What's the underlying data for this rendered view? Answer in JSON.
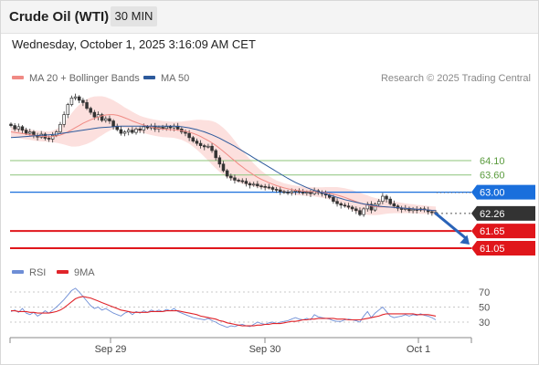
{
  "header": {
    "title": "Crude Oil (WTI)",
    "timeframe": "30 MIN"
  },
  "timestamp": "Wednesday, October 1, 2025 3:16:09 AM CET",
  "legend": {
    "ma20": {
      "label": "MA 20 + Bollinger Bands",
      "color": "#f08a84"
    },
    "ma50": {
      "label": "MA 50",
      "color": "#2d5a9c"
    },
    "credit": "Research © 2025 Trading Central"
  },
  "rsi_legend": {
    "rsi": {
      "label": "RSI",
      "color": "#6e8ed6"
    },
    "ma9": {
      "label": "9MA",
      "color": "#e0242a"
    }
  },
  "chart_data": [
    {
      "type": "candlestick",
      "title": "Crude Oil (WTI)",
      "timeframe": "30 MIN",
      "x_tick_labels": [
        "Sep 29",
        "Sep 30",
        "Oct 1"
      ],
      "ylim": [
        60.7,
        66.6
      ],
      "price_levels": [
        {
          "value": 64.1,
          "label": "64.10",
          "role": "resistance",
          "color": "#8cc47a"
        },
        {
          "value": 63.6,
          "label": "63.60",
          "role": "resistance",
          "color": "#8cc47a"
        },
        {
          "value": 63.0,
          "label": "63.00",
          "role": "pivot",
          "color": "#1a6fdc"
        },
        {
          "value": 62.26,
          "label": "62.26",
          "role": "last price",
          "color": "#333333"
        },
        {
          "value": 61.65,
          "label": "61.65",
          "role": "support",
          "color": "#e0161b"
        },
        {
          "value": 61.05,
          "label": "61.05",
          "role": "support",
          "color": "#e0161b"
        }
      ],
      "close": [
        65.32,
        65.2,
        65.28,
        65.16,
        65.05,
        65.1,
        64.98,
        64.92,
        65.02,
        64.88,
        64.85,
        64.98,
        65.1,
        65.36,
        65.7,
        66.05,
        66.28,
        66.32,
        66.2,
        66.12,
        65.92,
        65.78,
        65.62,
        65.7,
        65.5,
        65.56,
        65.48,
        65.3,
        65.18,
        65.05,
        65.1,
        65.16,
        65.08,
        65.2,
        65.16,
        65.28,
        65.24,
        65.3,
        65.2,
        65.26,
        65.22,
        65.28,
        65.24,
        65.3,
        65.2,
        65.1,
        65.05,
        64.9,
        64.78,
        64.7,
        64.62,
        64.58,
        64.6,
        64.45,
        64.2,
        63.98,
        63.75,
        63.56,
        63.5,
        63.42,
        63.4,
        63.38,
        63.3,
        63.25,
        63.28,
        63.22,
        63.2,
        63.18,
        63.16,
        63.1,
        63.08,
        63.02,
        63.0,
        62.98,
        63.02,
        63.05,
        63.0,
        62.98,
        63.0,
        62.95,
        63.05,
        62.98,
        62.95,
        62.9,
        62.82,
        62.68,
        62.6,
        62.55,
        62.52,
        62.48,
        62.42,
        62.36,
        62.22,
        62.42,
        62.58,
        62.38,
        62.58,
        62.68,
        62.86,
        62.76,
        62.6,
        62.52,
        62.44,
        62.4,
        62.44,
        62.36,
        62.4,
        62.38,
        62.42,
        62.38,
        62.32,
        62.3,
        62.26
      ],
      "ma20": [
        65.1,
        65.08,
        65.06,
        65.04,
        65.02,
        65.0,
        64.98,
        64.96,
        64.95,
        64.94,
        64.93,
        64.94,
        64.96,
        64.99,
        65.04,
        65.1,
        65.17,
        65.25,
        65.32,
        65.4,
        65.46,
        65.52,
        65.57,
        65.62,
        65.66,
        65.69,
        65.7,
        65.7,
        65.68,
        65.64,
        65.59,
        65.54,
        65.48,
        65.43,
        65.38,
        65.34,
        65.3,
        65.27,
        65.24,
        65.22,
        65.2,
        65.19,
        65.18,
        65.17,
        65.16,
        65.14,
        65.12,
        65.09,
        65.05,
        65.0,
        64.94,
        64.87,
        64.8,
        64.72,
        64.63,
        64.53,
        64.42,
        64.31,
        64.2,
        64.09,
        63.98,
        63.88,
        63.78,
        63.69,
        63.6,
        63.52,
        63.45,
        63.39,
        63.33,
        63.28,
        63.23,
        63.19,
        63.15,
        63.12,
        63.09,
        63.07,
        63.05,
        63.04,
        63.03,
        63.02,
        63.01,
        63.0,
        62.99,
        62.98,
        62.96,
        62.93,
        62.9,
        62.86,
        62.82,
        62.77,
        62.72,
        62.67,
        62.62,
        62.58,
        62.55,
        62.52,
        62.5,
        62.49,
        62.49,
        62.49,
        62.48,
        62.47,
        62.46,
        62.45,
        62.44,
        62.43,
        62.42,
        62.41,
        62.4,
        62.39,
        62.38,
        62.37,
        62.36
      ],
      "bb_width": [
        0.18,
        0.18,
        0.18,
        0.18,
        0.18,
        0.18,
        0.18,
        0.18,
        0.18,
        0.18,
        0.18,
        0.2,
        0.24,
        0.3,
        0.38,
        0.48,
        0.58,
        0.66,
        0.72,
        0.76,
        0.78,
        0.78,
        0.76,
        0.72,
        0.68,
        0.62,
        0.56,
        0.5,
        0.44,
        0.4,
        0.36,
        0.34,
        0.32,
        0.3,
        0.28,
        0.28,
        0.28,
        0.28,
        0.28,
        0.28,
        0.28,
        0.28,
        0.28,
        0.28,
        0.3,
        0.32,
        0.36,
        0.4,
        0.46,
        0.52,
        0.58,
        0.64,
        0.7,
        0.76,
        0.8,
        0.82,
        0.82,
        0.8,
        0.76,
        0.7,
        0.64,
        0.58,
        0.52,
        0.46,
        0.4,
        0.35,
        0.3,
        0.26,
        0.23,
        0.2,
        0.18,
        0.17,
        0.16,
        0.16,
        0.16,
        0.16,
        0.16,
        0.16,
        0.16,
        0.16,
        0.16,
        0.17,
        0.18,
        0.2,
        0.22,
        0.25,
        0.28,
        0.3,
        0.32,
        0.34,
        0.36,
        0.36,
        0.36,
        0.35,
        0.34,
        0.32,
        0.3,
        0.28,
        0.26,
        0.24,
        0.22,
        0.2,
        0.19,
        0.18,
        0.17,
        0.16,
        0.16,
        0.15,
        0.15,
        0.15,
        0.14,
        0.14,
        0.14
      ],
      "ma50": [
        64.9,
        64.91,
        64.92,
        64.93,
        64.94,
        64.95,
        64.96,
        64.97,
        64.98,
        64.99,
        65.0,
        65.01,
        65.02,
        65.04,
        65.06,
        65.08,
        65.1,
        65.12,
        65.14,
        65.16,
        65.18,
        65.2,
        65.22,
        65.24,
        65.25,
        65.26,
        65.27,
        65.28,
        65.29,
        65.3,
        65.3,
        65.3,
        65.3,
        65.3,
        65.3,
        65.3,
        65.3,
        65.3,
        65.3,
        65.3,
        65.3,
        65.3,
        65.3,
        65.3,
        65.29,
        65.28,
        65.26,
        65.24,
        65.21,
        65.18,
        65.14,
        65.1,
        65.05,
        65.0,
        64.94,
        64.88,
        64.81,
        64.74,
        64.67,
        64.6,
        64.52,
        64.44,
        64.36,
        64.28,
        64.2,
        64.12,
        64.04,
        63.96,
        63.88,
        63.8,
        63.72,
        63.64,
        63.56,
        63.48,
        63.41,
        63.34,
        63.28,
        63.22,
        63.16,
        63.11,
        63.06,
        63.02,
        62.98,
        62.94,
        62.9,
        62.86,
        62.82,
        62.78,
        62.74,
        62.71,
        62.68,
        62.65,
        62.62,
        62.59,
        62.57,
        62.55,
        62.53,
        62.51,
        62.5,
        62.49,
        62.48,
        62.47,
        62.46,
        62.45,
        62.44,
        62.43,
        62.42,
        62.41,
        62.4,
        62.39,
        62.38,
        62.37,
        62.36
      ],
      "forecast": {
        "from": 62.26,
        "to": 61.05
      }
    },
    {
      "type": "line",
      "title": "RSI",
      "x_tick_labels": [
        "Sep 29",
        "Sep 30",
        "Oct 1"
      ],
      "ylim": [
        15,
        80
      ],
      "y_ticks": [
        70,
        50,
        30
      ],
      "series": [
        {
          "name": "RSI",
          "color": "#6e8ed6",
          "values": [
            44,
            46,
            43,
            48,
            42,
            40,
            43,
            38,
            41,
            45,
            42,
            46,
            50,
            55,
            60,
            66,
            72,
            75,
            70,
            64,
            58,
            52,
            48,
            50,
            46,
            48,
            45,
            42,
            40,
            38,
            42,
            44,
            40,
            44,
            42,
            45,
            43,
            46,
            44,
            46,
            44,
            47,
            45,
            48,
            44,
            42,
            40,
            38,
            36,
            35,
            34,
            33,
            35,
            32,
            30,
            27,
            25,
            23,
            25,
            24,
            26,
            27,
            25,
            24,
            27,
            30,
            28,
            27,
            29,
            30,
            28,
            30,
            31,
            32,
            34,
            36,
            34,
            33,
            35,
            33,
            40,
            37,
            36,
            35,
            34,
            32,
            31,
            31,
            33,
            34,
            33,
            32,
            30,
            38,
            44,
            36,
            42,
            46,
            50,
            44,
            38,
            36,
            37,
            38,
            40,
            38,
            40,
            39,
            41,
            39,
            38,
            36,
            33
          ]
        },
        {
          "name": "9MA",
          "color": "#e0242a",
          "values": [
            45,
            45,
            44,
            44,
            44,
            43,
            43,
            42,
            42,
            42,
            42,
            43,
            44,
            46,
            49,
            53,
            57,
            61,
            63,
            64,
            63,
            62,
            60,
            58,
            56,
            54,
            52,
            50,
            48,
            46,
            45,
            44,
            43,
            43,
            43,
            43,
            43,
            44,
            44,
            44,
            44,
            45,
            45,
            45,
            45,
            44,
            43,
            42,
            41,
            40,
            38,
            37,
            36,
            35,
            34,
            32,
            31,
            29,
            28,
            27,
            26,
            25,
            25,
            25,
            25,
            26,
            26,
            27,
            27,
            28,
            28,
            28,
            29,
            30,
            31,
            31,
            32,
            33,
            33,
            34,
            34,
            35,
            35,
            35,
            35,
            35,
            34,
            34,
            34,
            33,
            33,
            33,
            33,
            34,
            35,
            36,
            37,
            38,
            40,
            41,
            41,
            41,
            41,
            41,
            41,
            41,
            41,
            40,
            40,
            40,
            40,
            39,
            38
          ]
        }
      ]
    }
  ]
}
